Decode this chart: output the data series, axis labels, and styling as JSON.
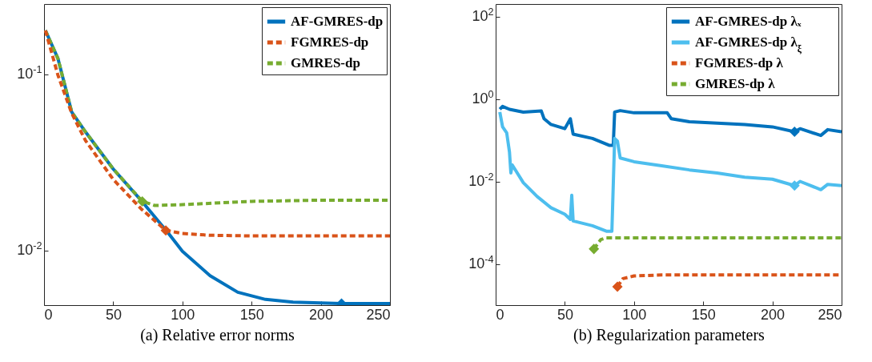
{
  "chart_data": [
    {
      "type": "line",
      "xlabel": "(a) Relative error norms",
      "log": "y",
      "legend": "top right",
      "xlim": [
        0,
        250
      ],
      "ylim": [
        0.0049,
        0.25
      ],
      "xticks": [
        0,
        50,
        100,
        150,
        200,
        250
      ],
      "yticks": [
        {
          "value": 0.1,
          "label": "10$^{-1}$"
        },
        {
          "value": 0.01,
          "label": "10$^{-2}$"
        }
      ],
      "series": [
        {
          "name": "AF-GMRES-dp",
          "color": "#0072bd",
          "line_style": "solid",
          "x": [
            1,
            10,
            20,
            30,
            50,
            70,
            90,
            100,
            120,
            140,
            160,
            180,
            215,
            250
          ],
          "values": [
            0.177,
            0.123,
            0.061,
            0.047,
            0.029,
            0.0193,
            0.0125,
            0.0099,
            0.0072,
            0.0058,
            0.00528,
            0.0051,
            0.005,
            0.005
          ]
        },
        {
          "name": "FGMRES-dp",
          "color": "#d95319",
          "line_style": "dashed",
          "x": [
            1,
            10,
            20,
            30,
            50,
            70,
            88,
            100,
            120,
            150,
            250
          ],
          "values": [
            0.177,
            0.099,
            0.06,
            0.042,
            0.0253,
            0.0173,
            0.013,
            0.0125,
            0.0122,
            0.0121,
            0.0121
          ]
        },
        {
          "name": "GMRES-dp",
          "color": "#77ac30",
          "line_style": "dashed",
          "x": [
            1,
            10,
            20,
            30,
            50,
            71,
            80,
            100,
            150,
            200,
            250
          ],
          "values": [
            0.177,
            0.123,
            0.061,
            0.047,
            0.029,
            0.019,
            0.018,
            0.0182,
            0.019,
            0.0193,
            0.0193
          ]
        },
        {
          "type": "scatter",
          "marker": "diamond",
          "color": "#0072bd",
          "x": [
            215
          ],
          "values": [
            0.005
          ]
        },
        {
          "type": "scatter",
          "marker": "diamond",
          "color": "#d95319",
          "x": [
            88
          ],
          "values": [
            0.013
          ]
        },
        {
          "type": "scatter",
          "marker": "diamond",
          "color": "#77ac30",
          "x": [
            71
          ],
          "values": [
            0.019
          ]
        }
      ]
    },
    {
      "type": "line",
      "xlabel": "(b) Regularization parameters",
      "log": "y",
      "legend": "top right",
      "xlim": [
        0,
        250
      ],
      "ylim": [
        1e-05,
        200
      ],
      "xticks": [
        0,
        50,
        100,
        150,
        200,
        250
      ],
      "yticks": [
        {
          "value": 0.0001,
          "label": "10$^{-4}$"
        },
        {
          "value": 0.01,
          "label": "10$^{-2}$"
        },
        {
          "value": 1,
          "label": "10$^{0}$"
        },
        {
          "value": 100,
          "label": "10$^{2}$"
        }
      ],
      "series": [
        {
          "name": "AF-GMRES-dp λₓ",
          "color": "#0072bd",
          "line_style": "solid",
          "x": [
            3,
            5,
            10,
            20,
            33,
            35,
            40,
            50,
            54,
            56,
            70,
            82,
            85,
            86,
            90,
            100,
            124,
            127,
            140,
            160,
            180,
            200,
            216,
            220,
            235,
            240,
            250
          ],
          "values": [
            0.56,
            0.66,
            0.56,
            0.48,
            0.51,
            0.33,
            0.24,
            0.19,
            0.33,
            0.14,
            0.11,
            0.075,
            0.075,
            0.48,
            0.52,
            0.46,
            0.46,
            0.33,
            0.28,
            0.26,
            0.24,
            0.21,
            0.16,
            0.19,
            0.13,
            0.18,
            0.16
          ]
        },
        {
          "name": "AF-GMRES-dp λ$_{ξ}$",
          "color": "#4dbeee",
          "line_style": "solid",
          "x": [
            3,
            5,
            8,
            10,
            11,
            12,
            20,
            30,
            40,
            50,
            54,
            55,
            56,
            70,
            80,
            84,
            86,
            88,
            90,
            100,
            120,
            140,
            160,
            180,
            200,
            216,
            220,
            235,
            240,
            250
          ],
          "values": [
            0.48,
            0.21,
            0.15,
            0.051,
            0.016,
            0.025,
            0.0093,
            0.0043,
            0.0023,
            0.0016,
            0.0012,
            0.0046,
            0.0011,
            0.00084,
            0.00062,
            0.00062,
            0.11,
            0.095,
            0.037,
            0.03,
            0.024,
            0.019,
            0.016,
            0.0126,
            0.0113,
            0.0079,
            0.01,
            0.0063,
            0.0085,
            0.0079
          ]
        },
        {
          "name": "FGMRES-dp λ",
          "color": "#d95319",
          "line_style": "dashed",
          "x": [
            88,
            92,
            100,
            120,
            250
          ],
          "values": [
            2.8e-05,
            4.4e-05,
            5.1e-05,
            5.4e-05,
            5.4e-05
          ]
        },
        {
          "name": "GMRES-dp λ",
          "color": "#77ac30",
          "line_style": "dashed",
          "x": [
            71,
            76,
            80,
            250
          ],
          "values": [
            0.00023,
            0.00039,
            0.00043,
            0.00043
          ]
        },
        {
          "type": "scatter",
          "marker": "diamond",
          "color": "#0072bd",
          "x": [
            216
          ],
          "values": [
            0.16
          ]
        },
        {
          "type": "scatter",
          "marker": "diamond",
          "color": "#4dbeee",
          "x": [
            216
          ],
          "values": [
            0.0079
          ]
        },
        {
          "type": "scatter",
          "marker": "diamond",
          "color": "#d95319",
          "x": [
            88
          ],
          "values": [
            2.8e-05
          ]
        },
        {
          "type": "scatter",
          "marker": "diamond",
          "color": "#77ac30",
          "x": [
            71
          ],
          "values": [
            0.00023
          ]
        }
      ]
    }
  ]
}
